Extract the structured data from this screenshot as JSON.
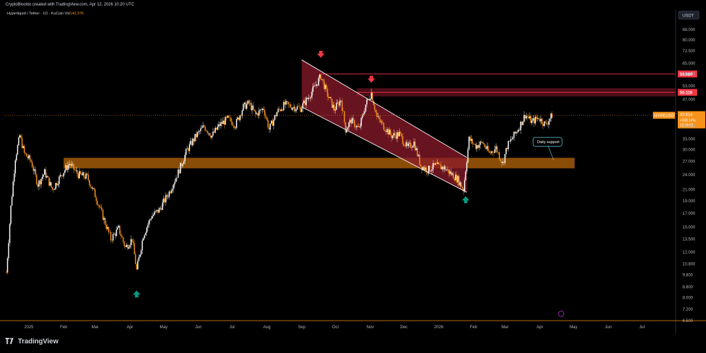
{
  "topbar": {
    "credit": "CryptoBlockto created with TradingView.com, Apr 12, 2026 10:20 UTC"
  },
  "legend": {
    "pair": "Hyperliquid / Tether · 1D · KuCoin",
    "vol_label": "Vol",
    "vol_value": "142.37K"
  },
  "footer": {
    "brand": "TradingView"
  },
  "colors": {
    "background": "#000000",
    "up": "#ffffff",
    "down": "#f7931a",
    "zone": "#b8670a",
    "channel": "#8b1a2b",
    "resistance": "#f23645",
    "arrow_down": "#f23645",
    "arrow_up": "#089981"
  },
  "chart_data": {
    "type": "candlestick",
    "symbol": "HYPEUSDT",
    "currency": "USDT",
    "y_scale": "log",
    "ylim": [
      6.5,
      100
    ],
    "y_ticks": [
      "100.000",
      "88.000",
      "80.000",
      "72.500",
      "65.000",
      "59.000",
      "53.000",
      "47.000",
      "40.814",
      "37.000",
      "33.000",
      "30.000",
      "27.000",
      "24.000",
      "21.000",
      "19.000",
      "17.000",
      "15.000",
      "13.500",
      "12.000",
      "10.800",
      "9.800",
      "8.800",
      "8.000",
      "7.200",
      "6.500"
    ],
    "y_tick_values": [
      100,
      88,
      80,
      72.5,
      65,
      59,
      53,
      47,
      40.814,
      37,
      33,
      30,
      27,
      24,
      21,
      19,
      17,
      15,
      13.5,
      12,
      10.8,
      9.8,
      8.8,
      8,
      7.2,
      6.5
    ],
    "x_ticks": [
      "2025",
      "Feb",
      "Mar",
      "Apr",
      "May",
      "Jun",
      "Jul",
      "Aug",
      "Sep",
      "Oct",
      "Nov",
      "Dec",
      "2026",
      "Feb",
      "Mar",
      "Apr",
      "May",
      "Jun",
      "Jul"
    ],
    "x_tick_dates": [
      "2025-01-01",
      "2025-02-01",
      "2025-03-01",
      "2025-04-01",
      "2025-05-01",
      "2025-06-01",
      "2025-07-01",
      "2025-08-01",
      "2025-09-01",
      "2025-10-01",
      "2025-11-01",
      "2025-12-01",
      "2026-01-01",
      "2026-02-01",
      "2026-03-01",
      "2026-04-01",
      "2026-05-01",
      "2026-06-01",
      "2026-07-01"
    ],
    "x_range": [
      "2024-12-10",
      "2026-07-31"
    ],
    "price_path": [
      [
        "2024-12-12",
        10.0
      ],
      [
        "2024-12-16",
        18.0
      ],
      [
        "2024-12-20",
        28.0
      ],
      [
        "2024-12-24",
        34.0
      ],
      [
        "2024-12-28",
        29.0
      ],
      [
        "2025-01-03",
        27.0
      ],
      [
        "2025-01-09",
        22.0
      ],
      [
        "2025-01-15",
        24.5
      ],
      [
        "2025-01-22",
        21.0
      ],
      [
        "2025-01-30",
        24.0
      ],
      [
        "2025-02-06",
        26.5
      ],
      [
        "2025-02-14",
        24.0
      ],
      [
        "2025-02-22",
        23.5
      ],
      [
        "2025-03-01",
        20.0
      ],
      [
        "2025-03-08",
        16.5
      ],
      [
        "2025-03-15",
        13.5
      ],
      [
        "2025-03-22",
        14.8
      ],
      [
        "2025-03-28",
        12.5
      ],
      [
        "2025-04-03",
        13.5
      ],
      [
        "2025-04-07",
        10.2
      ],
      [
        "2025-04-13",
        14.0
      ],
      [
        "2025-04-20",
        16.5
      ],
      [
        "2025-04-27",
        17.5
      ],
      [
        "2025-05-06",
        20.5
      ],
      [
        "2025-05-14",
        24.5
      ],
      [
        "2025-05-22",
        30.0
      ],
      [
        "2025-05-30",
        34.0
      ],
      [
        "2025-06-06",
        37.0
      ],
      [
        "2025-06-13",
        34.0
      ],
      [
        "2025-06-20",
        37.5
      ],
      [
        "2025-06-27",
        39.5
      ],
      [
        "2025-07-04",
        37.5
      ],
      [
        "2025-07-11",
        44.0
      ],
      [
        "2025-07-16",
        45.5
      ],
      [
        "2025-07-22",
        41.0
      ],
      [
        "2025-07-29",
        43.5
      ],
      [
        "2025-08-03",
        36.0
      ],
      [
        "2025-08-10",
        42.0
      ],
      [
        "2025-08-17",
        45.0
      ],
      [
        "2025-08-24",
        44.0
      ],
      [
        "2025-08-31",
        43.5
      ],
      [
        "2025-09-07",
        48.0
      ],
      [
        "2025-09-13",
        53.0
      ],
      [
        "2025-09-18",
        58.0
      ],
      [
        "2025-09-24",
        49.0
      ],
      [
        "2025-09-30",
        43.0
      ],
      [
        "2025-10-06",
        47.0
      ],
      [
        "2025-10-10",
        36.0
      ],
      [
        "2025-10-15",
        39.0
      ],
      [
        "2025-10-22",
        36.0
      ],
      [
        "2025-10-28",
        45.0
      ],
      [
        "2025-11-02",
        50.0
      ],
      [
        "2025-11-07",
        40.0
      ],
      [
        "2025-11-13",
        37.0
      ],
      [
        "2025-11-20",
        34.0
      ],
      [
        "2025-11-27",
        34.5
      ],
      [
        "2025-12-04",
        30.5
      ],
      [
        "2025-12-10",
        32.0
      ],
      [
        "2025-12-16",
        26.0
      ],
      [
        "2025-12-22",
        25.0
      ],
      [
        "2025-12-29",
        26.0
      ],
      [
        "2026-01-06",
        25.5
      ],
      [
        "2026-01-13",
        24.0
      ],
      [
        "2026-01-18",
        23.0
      ],
      [
        "2026-01-23",
        21.0
      ],
      [
        "2026-01-28",
        33.0
      ],
      [
        "2026-02-03",
        31.0
      ],
      [
        "2026-02-09",
        32.0
      ],
      [
        "2026-02-15",
        29.0
      ],
      [
        "2026-02-21",
        30.5
      ],
      [
        "2026-02-27",
        26.5
      ],
      [
        "2026-03-03",
        31.0
      ],
      [
        "2026-03-08",
        33.5
      ],
      [
        "2026-03-14",
        37.0
      ],
      [
        "2026-03-19",
        41.0
      ],
      [
        "2026-03-25",
        38.5
      ],
      [
        "2026-03-31",
        40.0
      ],
      [
        "2026-04-06",
        37.5
      ],
      [
        "2026-04-12",
        40.8
      ]
    ],
    "last_price": {
      "label": "HYPEUSDT",
      "value": "40.814",
      "change": "+308.14%",
      "countdown": "13:39:50"
    },
    "resistance_levels": [
      {
        "value": 59.08,
        "label": "59.080"
      },
      {
        "value": 50.119,
        "label": "50.119"
      }
    ],
    "support_zone": {
      "low": 25.4,
      "high": 27.9,
      "start": "2025-02-01",
      "end": "2026-05-02"
    },
    "descending_channel": {
      "upper": [
        [
          "2025-09-01",
          67.0
        ],
        [
          "2026-01-26",
          28.0
        ]
      ],
      "lower": [
        [
          "2025-09-01",
          44.0
        ],
        [
          "2026-01-26",
          20.5
        ]
      ]
    },
    "annotations": [
      {
        "text": "Daily support",
        "type": "callout"
      }
    ],
    "signals": [
      {
        "type": "down",
        "date": "2025-09-18",
        "price": 70.0
      },
      {
        "type": "down",
        "date": "2025-11-02",
        "price": 56.0
      },
      {
        "type": "up",
        "date": "2025-04-07",
        "price": 8.3
      },
      {
        "type": "up",
        "date": "2026-01-25",
        "price": 19.3
      }
    ]
  }
}
